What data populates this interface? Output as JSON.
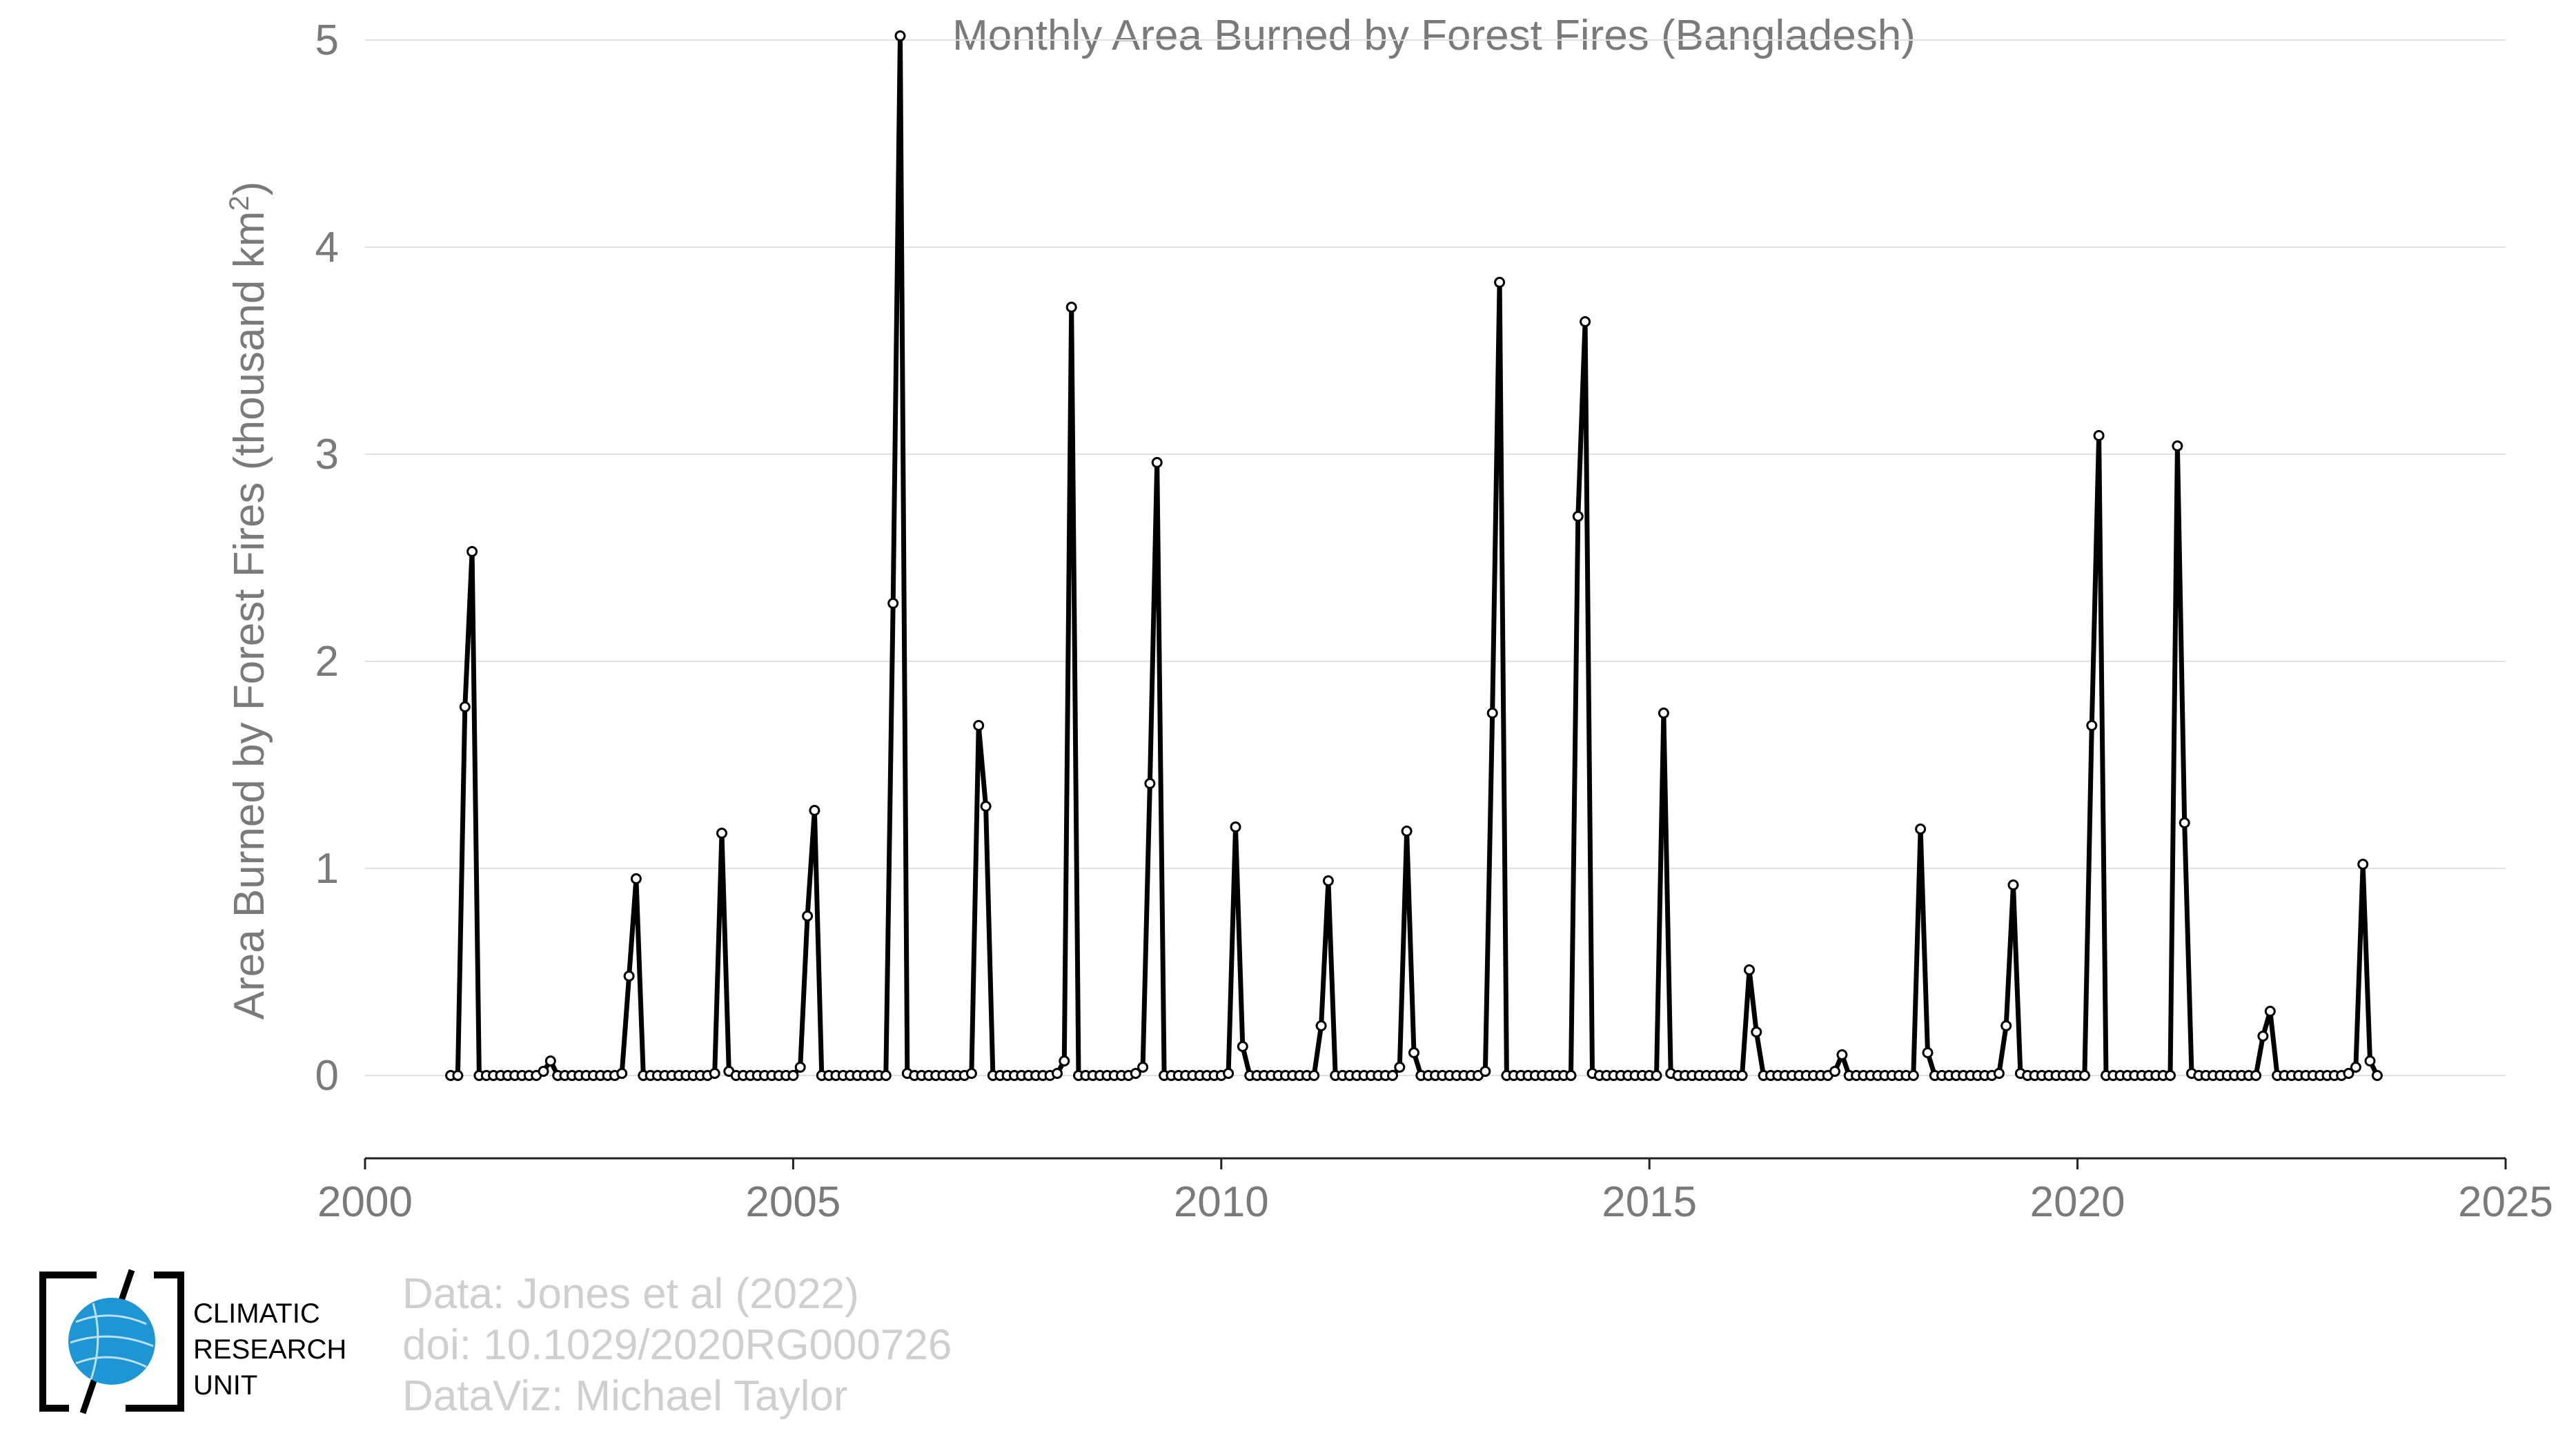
{
  "chart_data": {
    "type": "line",
    "title": "Monthly Area Burned by Forest Fires (Bangladesh)",
    "ylabel_main": "Area Burned by Forest Fires (thousand km",
    "ylabel_sup": "2",
    "ylabel_close": ")",
    "xlabel": "",
    "xlim": [
      2000,
      2025
    ],
    "ylim": [
      -0.4,
      5.1
    ],
    "x_ticks": [
      "2000",
      "2005",
      "2010",
      "2015",
      "2020",
      "2025"
    ],
    "y_ticks": [
      "0",
      "1",
      "2",
      "3",
      "4",
      "5"
    ],
    "grid": "horizontal",
    "line_color": "#000000",
    "marker_fill": "#ffffff",
    "start": "2001-01",
    "series": [
      {
        "values": [
          0.0,
          0.0,
          1.78,
          2.53,
          0.0,
          0.0,
          0.0,
          0.0,
          0.0,
          0.0,
          0.0,
          0.0,
          0.0,
          0.02,
          0.07,
          0.0,
          0.0,
          0.0,
          0.0,
          0.0,
          0.0,
          0.0,
          0.0,
          0.0,
          0.01,
          0.48,
          0.95,
          0.0,
          0.0,
          0.0,
          0.0,
          0.0,
          0.0,
          0.0,
          0.0,
          0.0,
          0.0,
          0.01,
          1.17,
          0.02,
          0.0,
          0.0,
          0.0,
          0.0,
          0.0,
          0.0,
          0.0,
          0.0,
          0.0,
          0.04,
          0.77,
          1.28,
          0.0,
          0.0,
          0.0,
          0.0,
          0.0,
          0.0,
          0.0,
          0.0,
          0.0,
          0.0,
          2.28,
          5.02,
          0.01,
          0.0,
          0.0,
          0.0,
          0.0,
          0.0,
          0.0,
          0.0,
          0.0,
          0.01,
          1.69,
          1.3,
          0.0,
          0.0,
          0.0,
          0.0,
          0.0,
          0.0,
          0.0,
          0.0,
          0.0,
          0.01,
          0.07,
          3.71,
          0.0,
          0.0,
          0.0,
          0.0,
          0.0,
          0.0,
          0.0,
          0.0,
          0.01,
          0.04,
          1.41,
          2.96,
          0.0,
          0.0,
          0.0,
          0.0,
          0.0,
          0.0,
          0.0,
          0.0,
          0.0,
          0.01,
          1.2,
          0.14,
          0.0,
          0.0,
          0.0,
          0.0,
          0.0,
          0.0,
          0.0,
          0.0,
          0.0,
          0.0,
          0.24,
          0.94,
          0.0,
          0.0,
          0.0,
          0.0,
          0.0,
          0.0,
          0.0,
          0.0,
          0.0,
          0.04,
          1.18,
          0.11,
          0.0,
          0.0,
          0.0,
          0.0,
          0.0,
          0.0,
          0.0,
          0.0,
          0.0,
          0.02,
          1.75,
          3.83,
          0.0,
          0.0,
          0.0,
          0.0,
          0.0,
          0.0,
          0.0,
          0.0,
          0.0,
          0.0,
          2.7,
          3.64,
          0.01,
          0.0,
          0.0,
          0.0,
          0.0,
          0.0,
          0.0,
          0.0,
          0.0,
          0.0,
          1.75,
          0.01,
          0.0,
          0.0,
          0.0,
          0.0,
          0.0,
          0.0,
          0.0,
          0.0,
          0.0,
          0.0,
          0.51,
          0.21,
          0.0,
          0.0,
          0.0,
          0.0,
          0.0,
          0.0,
          0.0,
          0.0,
          0.0,
          0.0,
          0.02,
          0.1,
          0.0,
          0.0,
          0.0,
          0.0,
          0.0,
          0.0,
          0.0,
          0.0,
          0.0,
          0.0,
          1.19,
          0.11,
          0.0,
          0.0,
          0.0,
          0.0,
          0.0,
          0.0,
          0.0,
          0.0,
          0.0,
          0.01,
          0.24,
          0.92,
          0.01,
          0.0,
          0.0,
          0.0,
          0.0,
          0.0,
          0.0,
          0.0,
          0.0,
          0.0,
          1.69,
          3.09,
          0.0,
          0.0,
          0.0,
          0.0,
          0.0,
          0.0,
          0.0,
          0.0,
          0.0,
          0.0,
          3.04,
          1.22,
          0.01,
          0.0,
          0.0,
          0.0,
          0.0,
          0.0,
          0.0,
          0.0,
          0.0,
          0.0,
          0.19,
          0.31,
          0.0,
          0.0,
          0.0,
          0.0,
          0.0,
          0.0,
          0.0,
          0.0,
          0.0,
          0.0,
          0.01,
          0.04,
          1.02,
          0.07,
          0.0
        ]
      }
    ]
  },
  "credits": {
    "line1": "Data: Jones et al (2022)",
    "line2": "doi: 10.1029/2020RG000726",
    "line3": "DataViz: Michael Taylor"
  },
  "logo": {
    "line1": "CLIMATIC",
    "line2": "RESEARCH",
    "line3": "UNIT",
    "globe_color": "#1e96d4"
  }
}
